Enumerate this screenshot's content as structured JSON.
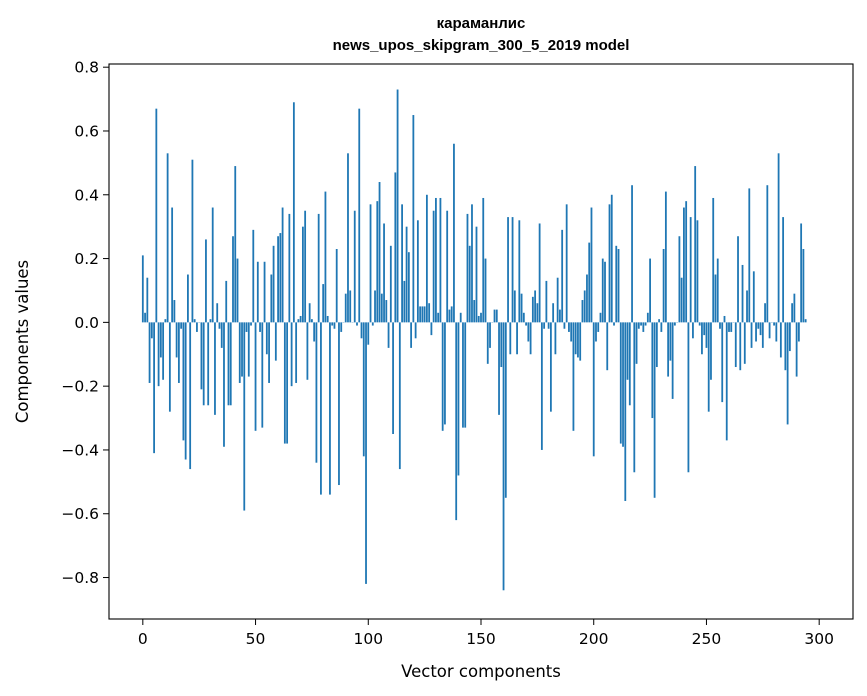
{
  "chart_data": {
    "type": "bar",
    "title": "караманлис",
    "subtitle": "news_upos_skipgram_300_5_2019 model",
    "xlabel": "Vector components",
    "ylabel": "Components values",
    "xlim": [
      -15,
      315
    ],
    "ylim": [
      -0.93,
      0.81
    ],
    "xticks": [
      0,
      50,
      100,
      150,
      200,
      250,
      300
    ],
    "yticks": [
      -0.8,
      -0.6,
      -0.4,
      -0.2,
      0.0,
      0.2,
      0.4,
      0.6,
      0.8
    ],
    "ytick_labels": [
      "−0.8",
      "−0.6",
      "−0.4",
      "−0.2",
      "0.0",
      "0.2",
      "0.4",
      "0.6",
      "0.8"
    ],
    "grid": false,
    "bar_color": "#1f77b4",
    "values": [
      0.21,
      0.03,
      0.14,
      -0.19,
      -0.05,
      -0.41,
      0.67,
      -0.2,
      -0.11,
      -0.18,
      0.01,
      0.53,
      -0.28,
      0.36,
      0.07,
      -0.11,
      -0.19,
      -0.02,
      -0.37,
      -0.43,
      0.15,
      -0.46,
      0.51,
      0.01,
      -0.03,
      0.0,
      -0.21,
      -0.26,
      0.26,
      -0.26,
      0.01,
      0.36,
      -0.29,
      0.06,
      -0.02,
      -0.08,
      -0.39,
      0.13,
      -0.26,
      -0.26,
      0.27,
      0.49,
      0.2,
      -0.19,
      -0.17,
      -0.59,
      -0.03,
      -0.17,
      -0.01,
      0.29,
      -0.34,
      0.19,
      -0.03,
      -0.33,
      0.19,
      -0.1,
      -0.19,
      0.15,
      0.24,
      -0.12,
      0.27,
      0.28,
      0.36,
      -0.38,
      -0.38,
      0.34,
      -0.2,
      0.69,
      -0.19,
      0.01,
      0.02,
      0.3,
      0.35,
      -0.18,
      0.06,
      0.01,
      -0.06,
      -0.44,
      0.34,
      -0.54,
      0.12,
      0.41,
      0.02,
      -0.54,
      -0.01,
      -0.02,
      0.23,
      -0.51,
      -0.03,
      0.0,
      0.09,
      0.53,
      0.1,
      0.0,
      0.35,
      -0.01,
      0.67,
      -0.05,
      -0.42,
      -0.82,
      -0.07,
      0.37,
      -0.01,
      0.1,
      0.38,
      0.44,
      0.09,
      0.31,
      0.07,
      -0.08,
      0.24,
      -0.35,
      0.47,
      0.73,
      -0.46,
      0.37,
      0.13,
      0.3,
      0.22,
      -0.08,
      0.65,
      -0.05,
      0.32,
      0.05,
      0.05,
      0.05,
      0.4,
      0.06,
      -0.04,
      0.35,
      0.39,
      0.03,
      0.39,
      -0.34,
      -0.32,
      0.35,
      0.04,
      0.05,
      0.56,
      -0.62,
      -0.48,
      0.03,
      -0.33,
      -0.33,
      0.34,
      0.24,
      0.37,
      0.07,
      0.3,
      0.02,
      0.03,
      0.39,
      0.2,
      -0.13,
      -0.08,
      0.0,
      0.04,
      0.04,
      -0.29,
      -0.14,
      -0.84,
      -0.55,
      0.33,
      -0.1,
      0.33,
      0.1,
      -0.1,
      0.32,
      0.09,
      0.03,
      -0.01,
      -0.06,
      -0.1,
      0.08,
      0.1,
      0.06,
      0.31,
      -0.4,
      -0.02,
      0.13,
      -0.02,
      -0.28,
      0.06,
      -0.1,
      0.14,
      0.04,
      0.29,
      -0.02,
      0.37,
      -0.03,
      -0.06,
      -0.34,
      -0.1,
      -0.11,
      -0.12,
      0.07,
      0.1,
      0.15,
      0.25,
      0.36,
      -0.42,
      -0.06,
      -0.03,
      0.03,
      0.2,
      0.19,
      -0.15,
      0.37,
      0.4,
      -0.01,
      0.24,
      0.23,
      -0.38,
      -0.39,
      -0.56,
      -0.18,
      -0.26,
      0.43,
      -0.47,
      -0.13,
      -0.02,
      -0.01,
      -0.03,
      -0.01,
      0.03,
      0.2,
      -0.3,
      -0.55,
      -0.14,
      0.01,
      -0.03,
      0.23,
      0.41,
      -0.17,
      -0.12,
      -0.24,
      -0.01,
      0.0,
      0.27,
      0.14,
      0.36,
      0.38,
      -0.47,
      0.33,
      -0.05,
      0.49,
      0.32,
      -0.01,
      -0.1,
      -0.04,
      -0.08,
      -0.28,
      -0.18,
      0.39,
      0.15,
      0.2,
      -0.02,
      -0.25,
      0.02,
      -0.37,
      -0.03,
      -0.03,
      0.0,
      -0.14,
      0.27,
      -0.15,
      0.18,
      -0.13,
      0.1,
      0.42,
      -0.08,
      0.16,
      -0.06,
      -0.02,
      -0.04,
      -0.08,
      0.06,
      0.43,
      -0.05,
      0.0,
      -0.01,
      -0.06,
      0.53,
      -0.11,
      0.33,
      -0.15,
      -0.32,
      -0.09,
      0.06,
      0.09,
      -0.17,
      -0.06,
      0.31,
      0.23,
      0.01
    ]
  }
}
